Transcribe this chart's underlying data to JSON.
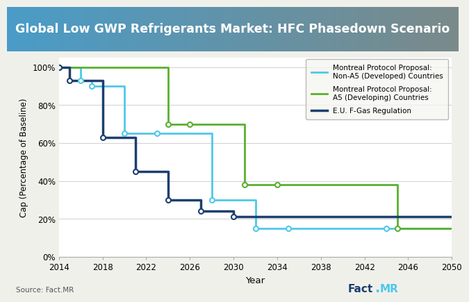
{
  "title": "Global Low GWP Refrigerants Market: HFC Phasedown Scenario",
  "title_bg_left": "#4a9cc8",
  "title_bg_right": "#7a8a8a",
  "title_text_color": "#ffffff",
  "xlabel": "Year",
  "ylabel": "Cap (Percentage of Baseline)",
  "xlim": [
    2014,
    2050
  ],
  "ylim": [
    0,
    105
  ],
  "yticks": [
    0,
    20,
    40,
    60,
    80,
    100
  ],
  "ytick_labels": [
    "0%",
    "20%",
    "40%",
    "60%",
    "80%",
    "100%"
  ],
  "xticks": [
    2014,
    2018,
    2022,
    2026,
    2030,
    2034,
    2038,
    2042,
    2046,
    2050
  ],
  "background_color": "#f0f0eb",
  "plot_bg_color": "#ffffff",
  "series": [
    {
      "name": "Montreal Protocol Proposal:\nNon-A5 (Developed) Countries",
      "color": "#50c8e8",
      "linewidth": 2.0,
      "x": [
        2014,
        2016,
        2016,
        2017,
        2017,
        2020,
        2020,
        2023,
        2023,
        2028,
        2028,
        2032,
        2032,
        2035,
        2035,
        2044,
        2044,
        2050
      ],
      "y": [
        100,
        100,
        93,
        93,
        90,
        90,
        65,
        65,
        65,
        65,
        30,
        30,
        15,
        15,
        15,
        15,
        15,
        15
      ]
    },
    {
      "name": "Montreal Protocol Proposal:\nA5 (Developing) Countries",
      "color": "#5ab030",
      "linewidth": 2.0,
      "x": [
        2014,
        2024,
        2024,
        2026,
        2026,
        2031,
        2031,
        2034,
        2034,
        2045,
        2045,
        2050
      ],
      "y": [
        100,
        100,
        70,
        70,
        70,
        70,
        38,
        38,
        38,
        38,
        15,
        15
      ]
    },
    {
      "name": "E.U. F-Gas Regulation",
      "color": "#1c3f6e",
      "linewidth": 2.5,
      "x": [
        2014,
        2015,
        2015,
        2018,
        2018,
        2021,
        2021,
        2024,
        2024,
        2027,
        2027,
        2030,
        2030,
        2050
      ],
      "y": [
        100,
        100,
        93,
        93,
        63,
        63,
        45,
        45,
        30,
        30,
        24,
        24,
        21,
        21
      ]
    }
  ],
  "markers_non_a5": {
    "x": [
      2014,
      2016,
      2017,
      2020,
      2023,
      2028,
      2032,
      2035,
      2044
    ],
    "y": [
      100,
      93,
      90,
      65,
      65,
      30,
      15,
      15,
      15
    ]
  },
  "markers_a5": {
    "x": [
      2014,
      2024,
      2026,
      2031,
      2034,
      2045
    ],
    "y": [
      100,
      70,
      70,
      38,
      38,
      15
    ]
  },
  "markers_eu": {
    "x": [
      2014,
      2015,
      2018,
      2021,
      2024,
      2027,
      2030
    ],
    "y": [
      100,
      93,
      63,
      45,
      30,
      24,
      21
    ]
  },
  "source_text": "Source: Fact.MR",
  "branding_fact_color": "#1c3f6e",
  "branding_dot_color": "#4dc8e8",
  "branding_mr_color": "#4dc8e8"
}
